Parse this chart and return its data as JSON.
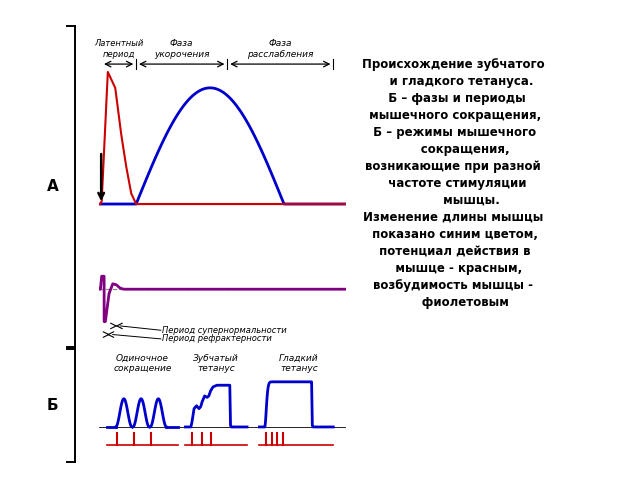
{
  "bg_color": "#ffffff",
  "label_A": "А",
  "label_B": "Б",
  "text_right": "Происхождение зубчатого\n    и гладкого тетануса.\n  Б – фазы и периоды\n мышечного сокращения,\n Б – режимы мышечного\n      сокращения,\nвозникающие при разной\n  частоте стимуляции\n         мышцы.\nИзменение длины мышцы\n показано синим цветом,\n потенциал действия в\n   мышце - красным,\nвозбудимость мышцы -\n      фиолетовым",
  "top_labels": {
    "latent": "Латентный\nпериод",
    "phase1": "Фаза\nукорочения",
    "phase2": "Фаза\nрасслабления"
  },
  "bottom_labels": {
    "single": "Одиночное\nсокращение",
    "zubchatyj": "Зубчатый\nтетанус",
    "gladkij": "Гладкий\nтетанус"
  },
  "period_labels": {
    "supernormal": "Период супернормальности",
    "refrakter": "Период рефрактерности"
  },
  "colors": {
    "blue": "#0000cc",
    "red": "#cc0000",
    "purple": "#800080",
    "dashed": "#888888",
    "black": "#000000"
  }
}
